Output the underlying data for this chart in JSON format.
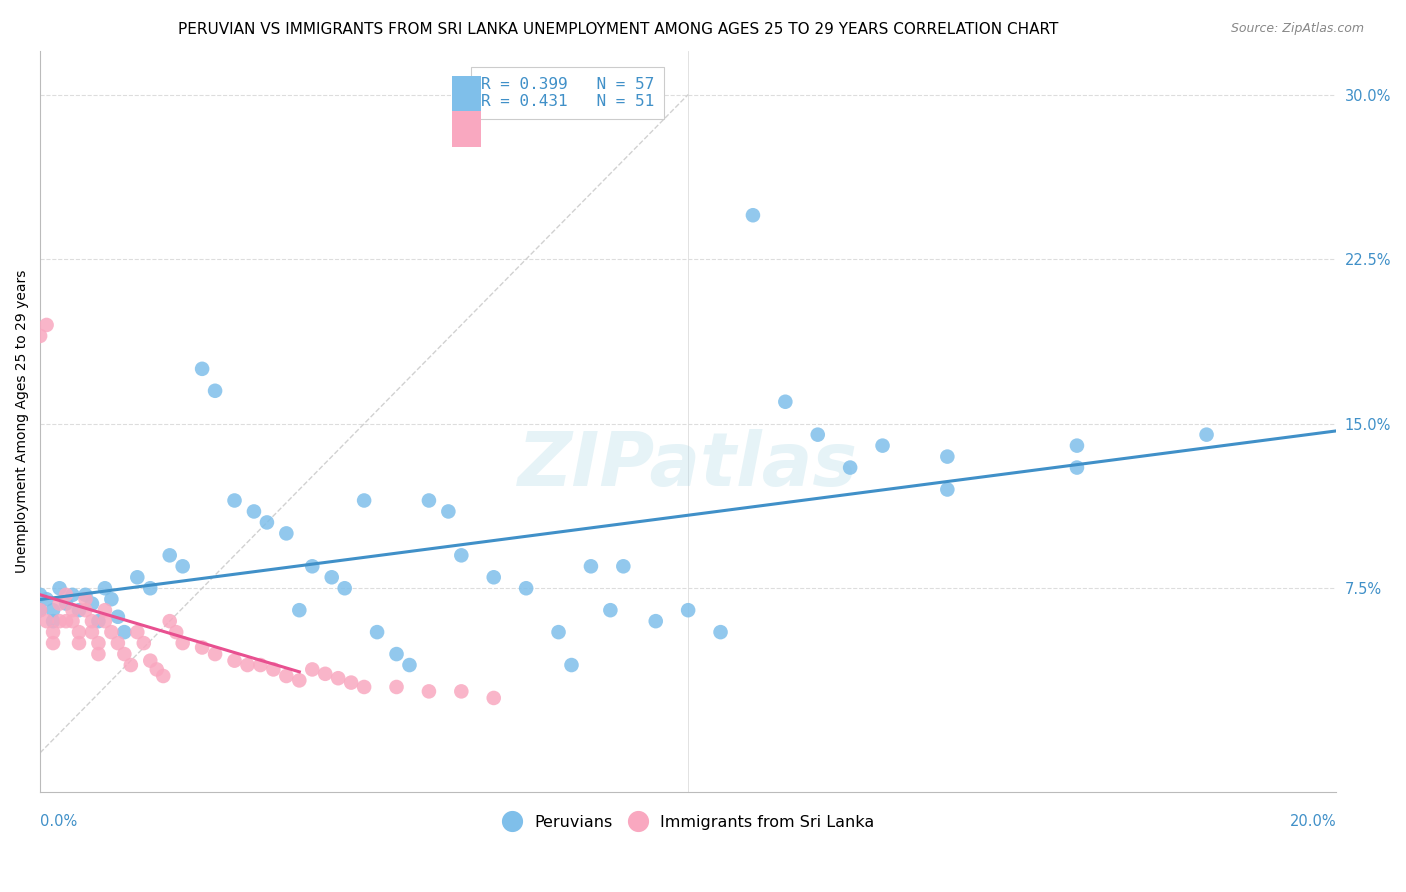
{
  "title": "PERUVIAN VS IMMIGRANTS FROM SRI LANKA UNEMPLOYMENT AMONG AGES 25 TO 29 YEARS CORRELATION CHART",
  "source": "Source: ZipAtlas.com",
  "ylabel": "Unemployment Among Ages 25 to 29 years",
  "xmin": 0.0,
  "xmax": 0.2,
  "ymin": -0.018,
  "ymax": 0.32,
  "blue_color": "#7fbfea",
  "pink_color": "#f9a8c0",
  "blue_line_color": "#4090c8",
  "pink_line_color": "#e85090",
  "ref_line_color": "#cccccc",
  "grid_color": "#dddddd",
  "right_tick_color": "#4090c8",
  "blue_x": [
    0.0,
    0.0,
    0.001,
    0.002,
    0.002,
    0.003,
    0.004,
    0.005,
    0.006,
    0.007,
    0.008,
    0.009,
    0.01,
    0.011,
    0.012,
    0.013,
    0.015,
    0.017,
    0.02,
    0.022,
    0.025,
    0.027,
    0.03,
    0.033,
    0.035,
    0.038,
    0.04,
    0.042,
    0.045,
    0.047,
    0.05,
    0.052,
    0.055,
    0.057,
    0.06,
    0.063,
    0.065,
    0.07,
    0.075,
    0.08,
    0.082,
    0.085,
    0.088,
    0.09,
    0.095,
    0.1,
    0.105,
    0.11,
    0.115,
    0.12,
    0.125,
    0.13,
    0.14,
    0.16,
    0.18,
    0.16,
    0.14
  ],
  "blue_y": [
    0.072,
    0.065,
    0.07,
    0.06,
    0.065,
    0.075,
    0.068,
    0.072,
    0.065,
    0.072,
    0.068,
    0.06,
    0.075,
    0.07,
    0.062,
    0.055,
    0.08,
    0.075,
    0.09,
    0.085,
    0.175,
    0.165,
    0.115,
    0.11,
    0.105,
    0.1,
    0.065,
    0.085,
    0.08,
    0.075,
    0.115,
    0.055,
    0.045,
    0.04,
    0.115,
    0.11,
    0.09,
    0.08,
    0.075,
    0.055,
    0.04,
    0.085,
    0.065,
    0.085,
    0.06,
    0.065,
    0.055,
    0.245,
    0.16,
    0.145,
    0.13,
    0.14,
    0.135,
    0.14,
    0.145,
    0.13,
    0.12
  ],
  "pink_x": [
    0.0,
    0.0,
    0.001,
    0.001,
    0.002,
    0.002,
    0.003,
    0.003,
    0.004,
    0.004,
    0.005,
    0.005,
    0.006,
    0.006,
    0.007,
    0.007,
    0.008,
    0.008,
    0.009,
    0.009,
    0.01,
    0.01,
    0.011,
    0.012,
    0.013,
    0.014,
    0.015,
    0.016,
    0.017,
    0.018,
    0.019,
    0.02,
    0.021,
    0.022,
    0.025,
    0.027,
    0.03,
    0.032,
    0.034,
    0.036,
    0.038,
    0.04,
    0.042,
    0.044,
    0.046,
    0.048,
    0.05,
    0.055,
    0.06,
    0.065,
    0.07
  ],
  "pink_y": [
    0.065,
    0.19,
    0.06,
    0.195,
    0.055,
    0.05,
    0.068,
    0.06,
    0.072,
    0.06,
    0.065,
    0.06,
    0.055,
    0.05,
    0.07,
    0.065,
    0.06,
    0.055,
    0.05,
    0.045,
    0.065,
    0.06,
    0.055,
    0.05,
    0.045,
    0.04,
    0.055,
    0.05,
    0.042,
    0.038,
    0.035,
    0.06,
    0.055,
    0.05,
    0.048,
    0.045,
    0.042,
    0.04,
    0.04,
    0.038,
    0.035,
    0.033,
    0.038,
    0.036,
    0.034,
    0.032,
    0.03,
    0.03,
    0.028,
    0.028,
    0.025
  ],
  "yticks": [
    0.075,
    0.15,
    0.225,
    0.3
  ],
  "ytick_labels": [
    "7.5%",
    "15.0%",
    "22.5%",
    "30.0%"
  ],
  "watermark_text": "ZIPatlas",
  "title_fontsize": 11,
  "source_fontsize": 9,
  "label_fontsize": 10,
  "tick_fontsize": 10.5,
  "legend_fontsize": 11.5
}
